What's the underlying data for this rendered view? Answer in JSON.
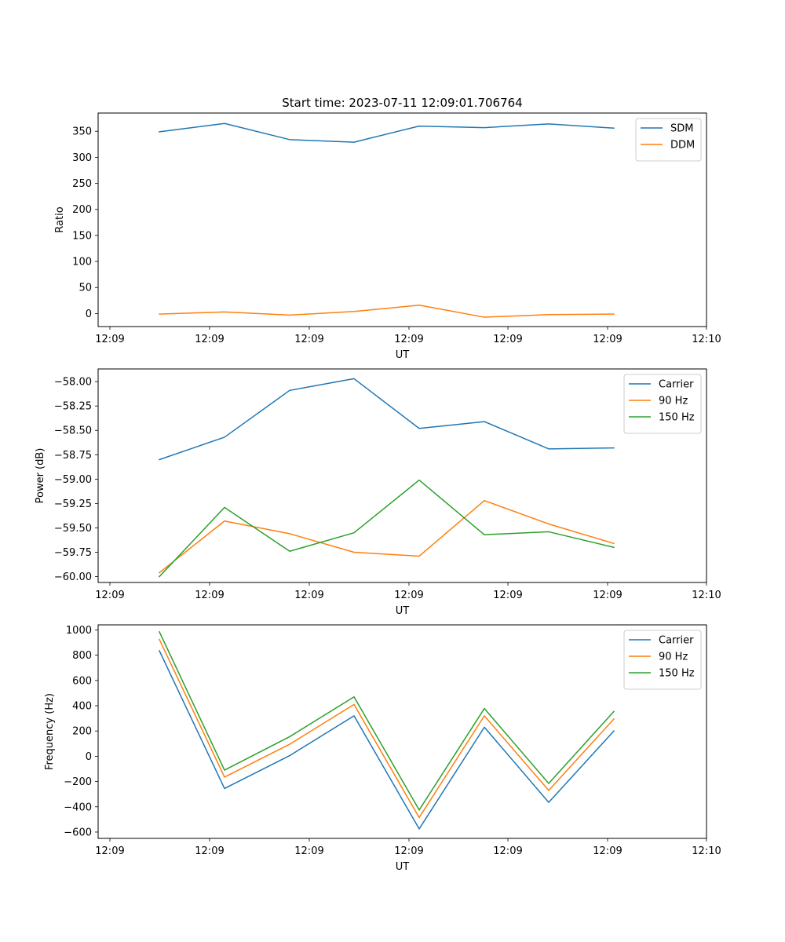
{
  "chart_data": [
    {
      "type": "line",
      "title": "Start time: 2023-07-11 12:09:01.706764",
      "xlabel": "UT",
      "ylabel": "Ratio",
      "x_ticks": [
        "12:09",
        "12:09",
        "12:09",
        "12:09",
        "12:09",
        "12:09",
        "12:10"
      ],
      "ylim": [
        -25,
        385
      ],
      "y_ticks": [
        0,
        50,
        100,
        150,
        200,
        250,
        300,
        350
      ],
      "legend": "top-right",
      "series": [
        {
          "name": "SDM",
          "color": "#1f77b4",
          "values": [
            349,
            365,
            334,
            329,
            360,
            357,
            364,
            356
          ]
        },
        {
          "name": "DDM",
          "color": "#ff7f0e",
          "values": [
            -1,
            3,
            -3,
            4,
            16,
            -7,
            -2,
            -1
          ]
        }
      ]
    },
    {
      "type": "line",
      "title": "",
      "xlabel": "UT",
      "ylabel": "Power (dB)",
      "x_ticks": [
        "12:09",
        "12:09",
        "12:09",
        "12:09",
        "12:09",
        "12:09",
        "12:10"
      ],
      "ylim": [
        -60.06,
        -57.87
      ],
      "y_ticks": [
        -60.0,
        -59.75,
        -59.5,
        -59.25,
        -59.0,
        -58.75,
        -58.5,
        -58.25,
        -58.0
      ],
      "y_tick_labels": [
        "−60.00",
        "−59.75",
        "−59.50",
        "−59.25",
        "−59.00",
        "−58.75",
        "−58.50",
        "−58.25",
        "−58.00"
      ],
      "legend": "top-right",
      "series": [
        {
          "name": "Carrier",
          "color": "#1f77b4",
          "values": [
            -58.8,
            -58.57,
            -58.09,
            -57.97,
            -58.48,
            -58.41,
            -58.69,
            -58.68
          ]
        },
        {
          "name": "90 Hz",
          "color": "#ff7f0e",
          "values": [
            -59.96,
            -59.43,
            -59.56,
            -59.75,
            -59.79,
            -59.22,
            -59.46,
            -59.66
          ]
        },
        {
          "name": "150 Hz",
          "color": "#2ca02c",
          "values": [
            -60.0,
            -59.29,
            -59.74,
            -59.55,
            -59.01,
            -59.57,
            -59.54,
            -59.7
          ]
        }
      ]
    },
    {
      "type": "line",
      "title": "",
      "xlabel": "UT",
      "ylabel": "Frequency (Hz)",
      "x_ticks": [
        "12:09",
        "12:09",
        "12:09",
        "12:09",
        "12:09",
        "12:09",
        "12:10"
      ],
      "ylim": [
        -650,
        1040
      ],
      "y_ticks": [
        -600,
        -400,
        -200,
        0,
        200,
        400,
        600,
        800,
        1000
      ],
      "y_tick_labels": [
        "−600",
        "−400",
        "−200",
        "0",
        "200",
        "400",
        "600",
        "800",
        "1000"
      ],
      "legend": "top-right",
      "series": [
        {
          "name": "Carrier",
          "color": "#1f77b4",
          "values": [
            835,
            -255,
            5,
            320,
            -575,
            230,
            -365,
            200
          ]
        },
        {
          "name": "90 Hz",
          "color": "#ff7f0e",
          "values": [
            925,
            -165,
            95,
            410,
            -485,
            320,
            -270,
            295
          ]
        },
        {
          "name": "150 Hz",
          "color": "#2ca02c",
          "values": [
            985,
            -110,
            155,
            470,
            -425,
            378,
            -215,
            355
          ]
        }
      ]
    }
  ]
}
